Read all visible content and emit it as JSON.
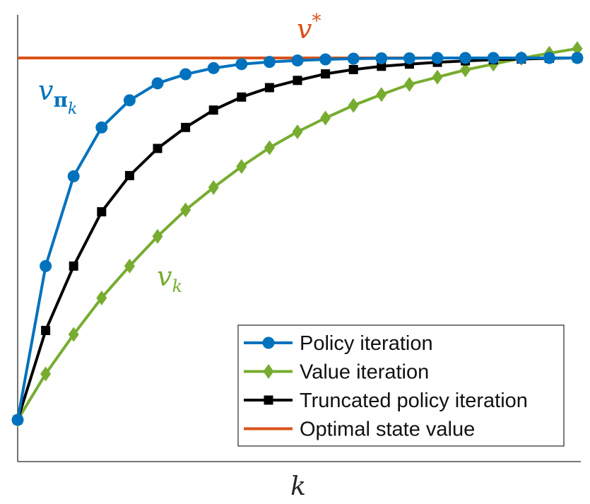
{
  "chart_data": {
    "type": "line",
    "xlabel": "k",
    "ylabel": "",
    "grid": false,
    "legend_position": "bottom-right",
    "x": [
      0,
      1,
      2,
      3,
      4,
      5,
      6,
      7,
      8,
      9,
      10,
      11,
      12,
      13,
      14,
      15,
      16,
      17,
      18,
      19,
      20
    ],
    "series": [
      {
        "name": "Policy iteration",
        "color": "#0072bd",
        "marker": "circle",
        "values": [
          0,
          0.425,
          0.673,
          0.808,
          0.883,
          0.93,
          0.955,
          0.972,
          0.983,
          0.989,
          0.993,
          0.996,
          0.998,
          0.999,
          0.999,
          1.0,
          1.0,
          1.0,
          1.0,
          1.0,
          1.0
        ]
      },
      {
        "name": "Value iteration",
        "color": "#77ac30",
        "marker": "diamond",
        "values": [
          0,
          0.127,
          0.236,
          0.337,
          0.425,
          0.507,
          0.58,
          0.642,
          0.7,
          0.752,
          0.796,
          0.834,
          0.869,
          0.899,
          0.927,
          0.947,
          0.967,
          0.983,
          0.999,
          1.013,
          1.026
        ]
      },
      {
        "name": "Truncated policy iteration",
        "color": "#000000",
        "marker": "square",
        "values": [
          0,
          0.247,
          0.425,
          0.575,
          0.675,
          0.75,
          0.808,
          0.856,
          0.892,
          0.918,
          0.938,
          0.956,
          0.968,
          0.977,
          0.983,
          0.988,
          0.992,
          0.995,
          0.997,
          0.999,
          1.0
        ]
      },
      {
        "name": "Optimal state value",
        "color": "#d95319",
        "marker": "none",
        "values": [
          1,
          1,
          1,
          1,
          1,
          1,
          1,
          1,
          1,
          1,
          1,
          1,
          1,
          1,
          1,
          1,
          1,
          1,
          1,
          1,
          1
        ]
      }
    ],
    "annotations": {
      "v_star": {
        "base": "v",
        "sup": "*",
        "color": "#d95319"
      },
      "v_pi_k": {
        "base": "v",
        "sub": "π",
        "subsub": "k",
        "color": "#0072bd"
      },
      "v_k": {
        "base": "v",
        "sub": "k",
        "color": "#77ac30"
      }
    }
  }
}
